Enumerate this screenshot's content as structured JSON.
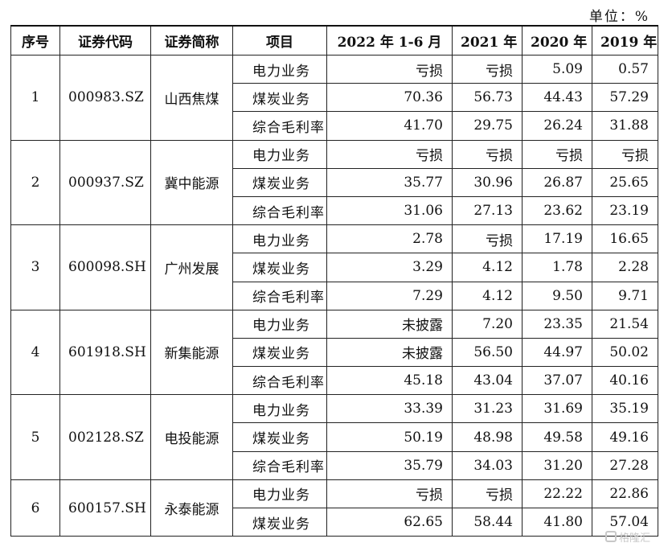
{
  "unit_label": "单位：%",
  "headers": [
    "序号",
    "证券代码",
    "证券简称",
    "项目",
    "2022 年 1-6 月",
    "2021 年",
    "2020 年",
    "2019 年"
  ],
  "companies": [
    {
      "no": "1",
      "code": "000983.SZ",
      "name": "山西焦煤",
      "rows": [
        {
          "item": "电力业务",
          "values": [
            "亏损",
            "亏损",
            "5.09",
            "0.57"
          ]
        },
        {
          "item": "煤炭业务",
          "values": [
            "70.36",
            "56.73",
            "44.43",
            "57.29"
          ]
        },
        {
          "item": "综合毛利率",
          "values": [
            "41.70",
            "29.75",
            "26.24",
            "31.88"
          ]
        }
      ]
    },
    {
      "no": "2",
      "code": "000937.SZ",
      "name": "冀中能源",
      "rows": [
        {
          "item": "电力业务",
          "values": [
            "亏损",
            "亏损",
            "亏损",
            "亏损"
          ]
        },
        {
          "item": "煤炭业务",
          "values": [
            "35.77",
            "30.96",
            "26.87",
            "25.65"
          ]
        },
        {
          "item": "综合毛利率",
          "values": [
            "31.06",
            "27.13",
            "23.62",
            "23.19"
          ]
        }
      ]
    },
    {
      "no": "3",
      "code": "600098.SH",
      "name": "广州发展",
      "rows": [
        {
          "item": "电力业务",
          "values": [
            "2.78",
            "亏损",
            "17.19",
            "16.65"
          ]
        },
        {
          "item": "煤炭业务",
          "values": [
            "3.29",
            "4.12",
            "1.78",
            "2.28"
          ]
        },
        {
          "item": "综合毛利率",
          "values": [
            "7.29",
            "4.12",
            "9.50",
            "9.71"
          ]
        }
      ]
    },
    {
      "no": "4",
      "code": "601918.SH",
      "name": "新集能源",
      "rows": [
        {
          "item": "电力业务",
          "values": [
            "未披露",
            "7.20",
            "23.35",
            "21.54"
          ]
        },
        {
          "item": "煤炭业务",
          "values": [
            "未披露",
            "56.50",
            "44.97",
            "50.02"
          ]
        },
        {
          "item": "综合毛利率",
          "values": [
            "45.18",
            "43.04",
            "37.07",
            "40.16"
          ]
        }
      ]
    },
    {
      "no": "5",
      "code": "002128.SZ",
      "name": "电投能源",
      "rows": [
        {
          "item": "电力业务",
          "values": [
            "33.39",
            "31.23",
            "31.69",
            "35.19"
          ]
        },
        {
          "item": "煤炭业务",
          "values": [
            "50.19",
            "48.98",
            "49.58",
            "49.16"
          ]
        },
        {
          "item": "综合毛利率",
          "values": [
            "35.79",
            "34.03",
            "31.20",
            "27.28"
          ]
        }
      ]
    },
    {
      "no": "6",
      "code": "600157.SH",
      "name": "永泰能源",
      "rows": [
        {
          "item": "电力业务",
          "values": [
            "亏损",
            "亏损",
            "22.22",
            "22.86"
          ]
        },
        {
          "item": "煤炭业务",
          "values": [
            "62.65",
            "58.44",
            "41.80",
            "57.04"
          ]
        }
      ]
    }
  ],
  "watermark": {
    "text": "格隆汇",
    "icon": "gelonghui-logo-icon"
  }
}
